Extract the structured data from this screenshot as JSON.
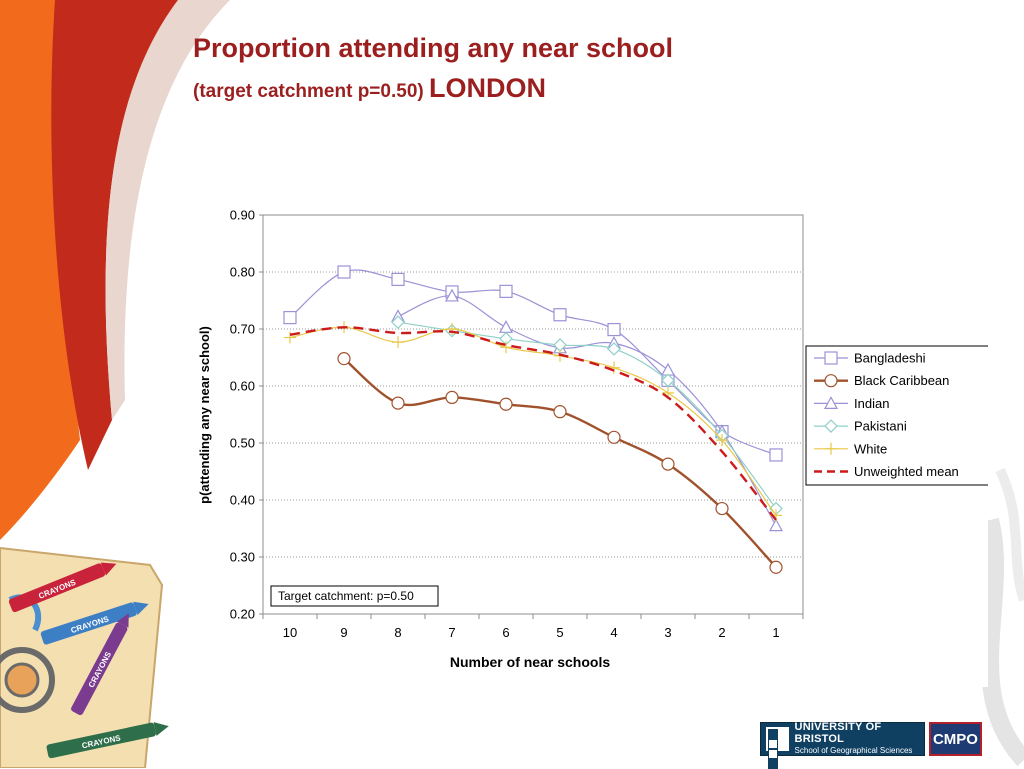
{
  "slide": {
    "title": "Proportion attending any near school",
    "subtitle": "(target catchment p=0.50)",
    "subtitle_location": "LONDON",
    "title_color": "#9b1f1f"
  },
  "logos": {
    "bristol_name": "UNIVERSITY OF BRISTOL",
    "bristol_school": "School of Geographical Sciences",
    "cmpo": "CMPO"
  },
  "decor": {
    "crayon_labels": [
      "CRAYONS",
      "CRAYONS",
      "CRAYONS",
      "CRAYONS"
    ]
  },
  "chart_data": {
    "type": "line",
    "title": "",
    "xlabel": "Number of near schools",
    "ylabel": "p(attending any near school)",
    "categories": [
      "10",
      "9",
      "8",
      "7",
      "6",
      "5",
      "4",
      "3",
      "2",
      "1"
    ],
    "ylim": [
      0.2,
      0.9
    ],
    "yticks": [
      "0.20",
      "0.30",
      "0.40",
      "0.50",
      "0.60",
      "0.70",
      "0.80",
      "0.90"
    ],
    "grid": "horizontal dotted",
    "legend_position": "right",
    "annotation": "Target catchment: p=0.50",
    "series": [
      {
        "name": "Bangladeshi",
        "marker": "square",
        "color": "#9a92d6",
        "dash": false,
        "values": [
          0.72,
          0.8,
          0.787,
          0.765,
          0.766,
          0.725,
          0.699,
          0.61,
          0.52,
          0.479
        ]
      },
      {
        "name": "Black Caribbean",
        "marker": "circle",
        "color": "#a0522d",
        "dash": false,
        "values": [
          null,
          0.648,
          0.57,
          0.58,
          0.568,
          0.555,
          0.51,
          0.463,
          0.385,
          0.282
        ]
      },
      {
        "name": "Indian",
        "marker": "triangle",
        "color": "#9a92d6",
        "dash": false,
        "values": [
          null,
          null,
          0.722,
          0.758,
          0.703,
          0.667,
          0.675,
          0.628,
          0.52,
          0.355
        ]
      },
      {
        "name": "Pakistani",
        "marker": "diamond",
        "color": "#8fd0c8",
        "dash": false,
        "values": [
          null,
          null,
          0.712,
          0.697,
          0.683,
          0.672,
          0.665,
          0.61,
          0.513,
          0.385
        ]
      },
      {
        "name": "White",
        "marker": "plus",
        "color": "#e8c84a",
        "dash": false,
        "values": [
          0.685,
          0.703,
          0.677,
          0.7,
          0.668,
          0.653,
          0.632,
          0.588,
          0.505,
          0.373
        ]
      },
      {
        "name": "Unweighted mean",
        "marker": "none",
        "color": "#cc1a1a",
        "dash": true,
        "values": [
          0.69,
          0.703,
          0.693,
          0.695,
          0.672,
          0.655,
          0.627,
          0.58,
          0.485,
          0.365
        ]
      }
    ]
  }
}
